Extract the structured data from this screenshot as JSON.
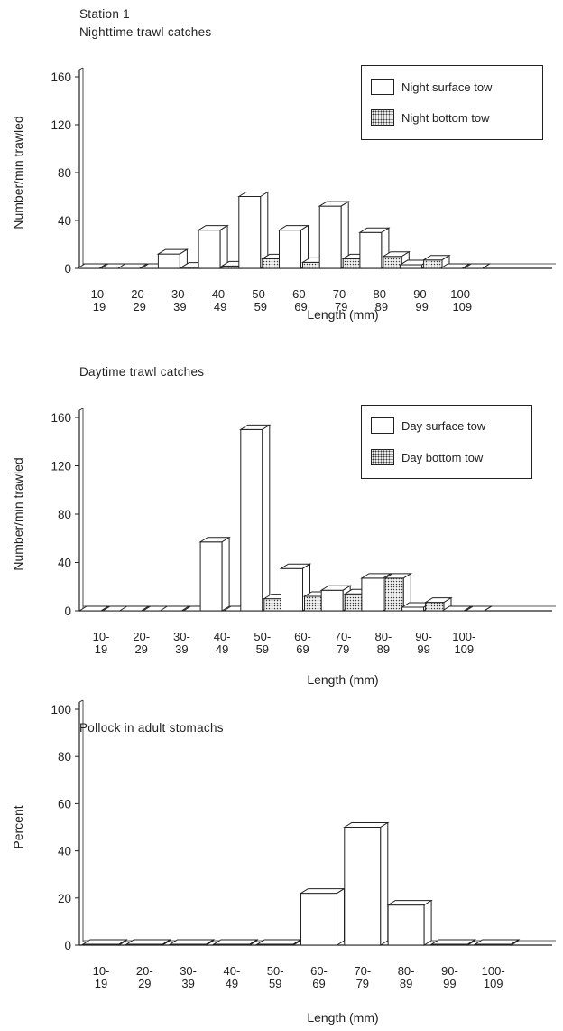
{
  "header": {
    "station": "Station 1"
  },
  "legends": [
    {
      "surface": "Night surface tow",
      "bottom": "Night bottom tow"
    },
    {
      "surface": "Day surface tow",
      "bottom": "Day bottom tow"
    }
  ],
  "chart_data": [
    {
      "type": "bar",
      "title": "Nighttime trawl catches",
      "xlabel": "Length (mm)",
      "ylabel": "Number/min trawled",
      "ylim": [
        0,
        160
      ],
      "yticks": [
        0,
        40,
        80,
        120,
        160
      ],
      "categories": [
        "10-19",
        "20-29",
        "30-39",
        "40-49",
        "50-59",
        "60-69",
        "70-79",
        "80-89",
        "90-99",
        "100-109"
      ],
      "category_labels": [
        [
          "10-",
          "19"
        ],
        [
          "20-",
          "29"
        ],
        [
          "30-",
          "39"
        ],
        [
          "40-",
          "49"
        ],
        [
          "50-",
          "59"
        ],
        [
          "60-",
          "69"
        ],
        [
          "70-",
          "79"
        ],
        [
          "80-",
          "89"
        ],
        [
          "90-",
          "99"
        ],
        [
          "100-",
          "109"
        ]
      ],
      "series": [
        {
          "name": "Night surface tow",
          "values": [
            0,
            0,
            12,
            32,
            60,
            32,
            52,
            30,
            3,
            0
          ]
        },
        {
          "name": "Night bottom tow",
          "values": [
            0,
            0,
            1,
            2,
            8,
            5,
            8,
            10,
            7,
            0
          ]
        }
      ],
      "legend_position": "top-right"
    },
    {
      "type": "bar",
      "title": "Daytime trawl catches",
      "xlabel": "Length (mm)",
      "ylabel": "Number/min trawled",
      "ylim": [
        0,
        160
      ],
      "yticks": [
        0,
        40,
        80,
        120,
        160
      ],
      "categories": [
        "10-19",
        "20-29",
        "30-39",
        "40-49",
        "50-59",
        "60-69",
        "70-79",
        "80-89",
        "90-99",
        "100-109"
      ],
      "category_labels": [
        [
          "10-",
          "19"
        ],
        [
          "20-",
          "29"
        ],
        [
          "30-",
          "39"
        ],
        [
          "40-",
          "49"
        ],
        [
          "50-",
          "59"
        ],
        [
          "60-",
          "69"
        ],
        [
          "70-",
          "79"
        ],
        [
          "80-",
          "89"
        ],
        [
          "90-",
          "99"
        ],
        [
          "100-",
          "109"
        ]
      ],
      "series": [
        {
          "name": "Day surface tow",
          "values": [
            0,
            0,
            0,
            57,
            150,
            35,
            17,
            27,
            3,
            0
          ]
        },
        {
          "name": "Day bottom tow",
          "values": [
            0,
            0,
            0,
            0,
            10,
            12,
            14,
            27,
            7,
            0
          ]
        }
      ],
      "legend_position": "top-right"
    },
    {
      "type": "bar",
      "title": "Pollock in adult stomachs",
      "xlabel": "Length (mm)",
      "ylabel": "Percent",
      "ylim": [
        0,
        100
      ],
      "yticks": [
        0,
        20,
        40,
        60,
        80,
        100
      ],
      "categories": [
        "10-19",
        "20-29",
        "30-39",
        "40-49",
        "50-59",
        "60-69",
        "70-79",
        "80-89",
        "90-99",
        "100-109"
      ],
      "category_labels": [
        [
          "10-",
          "19"
        ],
        [
          "20-",
          "29"
        ],
        [
          "30-",
          "39"
        ],
        [
          "40-",
          "49"
        ],
        [
          "50-",
          "59"
        ],
        [
          "60-",
          "69"
        ],
        [
          "70-",
          "79"
        ],
        [
          "80-",
          "89"
        ],
        [
          "90-",
          "99"
        ],
        [
          "100-",
          "109"
        ]
      ],
      "series": [
        {
          "values": [
            0,
            0,
            0,
            0,
            0,
            22,
            50,
            17,
            0,
            0
          ]
        }
      ],
      "legend_position": "none"
    }
  ]
}
